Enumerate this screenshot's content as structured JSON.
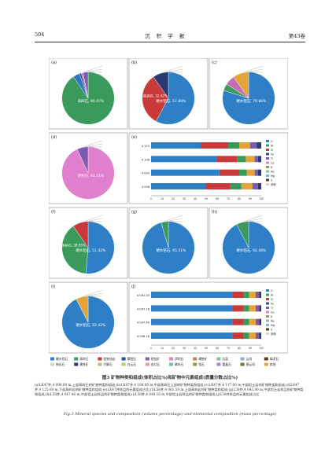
{
  "header": {
    "page": "504",
    "journal": "沉 积 学 报",
    "volume": "第43卷"
  },
  "panels": [
    {
      "id": "(a)",
      "slices": [
        {
          "label": "高岭石",
          "value": 90.47,
          "color": "#3a9a5c"
        },
        {
          "label": "钠长石",
          "value": 4.1,
          "color": "#3177c6"
        },
        {
          "label": "蒙脱石",
          "value": 1.2,
          "color": "#2a4e8c"
        },
        {
          "label": "伊利石",
          "value": 1.1,
          "color": "#c46fb4"
        },
        {
          "label": "其他",
          "value": 3.13,
          "color": "#7e5ab0"
        }
      ],
      "big_label": "高岭石, 90.47%"
    },
    {
      "id": "(b)",
      "slices": [
        {
          "label": "硬水铝石",
          "value": 57.86,
          "color": "#2f7fc6"
        },
        {
          "label": "铝铁质岩",
          "value": 32.42,
          "color": "#c83a3a"
        },
        {
          "label": "其他",
          "value": 9.72,
          "color": "#2b3a75"
        }
      ],
      "big_label": "硬水铝石, 57.86%",
      "mid_label": "铝铁质岩, 32.42%"
    },
    {
      "id": "(c)",
      "slices": [
        {
          "label": "硬水铝石",
          "value": 79.86,
          "color": "#2f7fc6"
        },
        {
          "label": "高岭石",
          "value": 4.2,
          "color": "#3a9a5c"
        },
        {
          "label": "锐钛矿",
          "value": 6.1,
          "color": "#c46fb4"
        },
        {
          "label": "其他",
          "value": 9.84,
          "color": "#e3a53a"
        }
      ],
      "big_label": "硬水铝石, 79.86%"
    },
    {
      "id": "(d)",
      "slices": [
        {
          "label": "伊利石",
          "value": 93.11,
          "color": "#e07fcd"
        },
        {
          "label": "其他",
          "value": 6.89,
          "color": "#7e5ab0"
        }
      ],
      "big_label": "伊利石, 93.11%"
    },
    {
      "id": "(f)",
      "slices": [
        {
          "label": "硬水铝石",
          "value": 51.42,
          "color": "#2f7fc6"
        },
        {
          "label": "高岭石",
          "value": 38.95,
          "color": "#3a9a5c"
        },
        {
          "label": "其他",
          "value": 9.63,
          "color": "#c83a3a"
        }
      ],
      "big_label": "硬水铝石, 51.42%",
      "mid_label": "高岭石, 38.95%"
    },
    {
      "id": "(g)",
      "slices": [
        {
          "label": "硬水铝石",
          "value": 95.51,
          "color": "#2f7fc6"
        },
        {
          "label": "其他",
          "value": 4.49,
          "color": "#3a9a5c"
        }
      ],
      "big_label": "硬水铝石, 95.51%"
    },
    {
      "id": "(h)",
      "slices": [
        {
          "label": "硬水铝石",
          "value": 92.46,
          "color": "#2f7fc6"
        },
        {
          "label": "其他",
          "value": 7.54,
          "color": "#3a9a5c"
        }
      ],
      "big_label": "硬水铝石, 92.46%"
    },
    {
      "id": "(i)",
      "slices": [
        {
          "label": "硬水铝石",
          "value": 92.42,
          "color": "#2f7fc6"
        },
        {
          "label": "其他",
          "value": 7.58,
          "color": "#e3a53a"
        }
      ],
      "big_label": "硬水铝石, 92.42%"
    }
  ],
  "bar_panels": [
    {
      "id": "(e)",
      "rows": [
        "4 125",
        "4 108",
        "4 090",
        "4 098"
      ],
      "segs": [
        [
          0.45,
          0.25,
          0.1,
          0.1,
          0.06,
          0.04
        ],
        [
          0.6,
          0.18,
          0.08,
          0.08,
          0.03,
          0.03
        ],
        [
          0.62,
          0.18,
          0.07,
          0.07,
          0.03,
          0.03
        ],
        [
          0.5,
          0.22,
          0.1,
          0.1,
          0.05,
          0.03
        ]
      ]
    },
    {
      "id": "(j)",
      "rows": [
        "4 061.59",
        "4 047.16",
        "4 047.46",
        "4 048.16"
      ],
      "segs": [
        [
          0.74,
          0.1,
          0.05,
          0.06,
          0.03,
          0.02
        ],
        [
          0.74,
          0.1,
          0.05,
          0.06,
          0.03,
          0.02
        ],
        [
          0.74,
          0.1,
          0.05,
          0.06,
          0.03,
          0.02
        ],
        [
          0.74,
          0.1,
          0.05,
          0.06,
          0.03,
          0.02
        ]
      ]
    }
  ],
  "bar_colors": [
    "#2f7fc6",
    "#c83a3a",
    "#3a9a5c",
    "#e3a53a",
    "#7e5ab0",
    "#2b3a75"
  ],
  "bar_axis": [
    "0",
    "10",
    "20",
    "30",
    "40",
    "50",
    "60",
    "70",
    "80",
    "90",
    "100"
  ],
  "bar_legend": [
    "O",
    "Al",
    "Si",
    "Fe",
    "Ti",
    "Ca",
    "K",
    "Na",
    "Mg",
    "S",
    "其他"
  ],
  "legend": [
    {
      "label": "硬水铝石",
      "color": "#2f7fc6"
    },
    {
      "label": "高岭石",
      "color": "#3a9a5c"
    },
    {
      "label": "铝铁质岩",
      "color": "#c83a3a"
    },
    {
      "label": "蒙脱石",
      "color": "#2a4e8c"
    },
    {
      "label": "锐钛矿",
      "color": "#7e5ab0"
    },
    {
      "label": "伊利石",
      "color": "#e07fcd"
    },
    {
      "label": "褐铁矿",
      "color": "#b38d5a"
    },
    {
      "label": "石英",
      "color": "#7fc6a0"
    },
    {
      "label": "云母",
      "color": "#8bb0d8"
    },
    {
      "label": "绿泥石",
      "color": "#5c3a1e"
    },
    {
      "label": "钠长石",
      "color": "#d4d4d4"
    },
    {
      "label": "黄铁矿",
      "color": "#2b3a75"
    },
    {
      "label": "方解石",
      "color": "#c6b880"
    },
    {
      "label": "白云石",
      "color": "#a8d46a"
    },
    {
      "label": "金红石",
      "color": "#e89e9e"
    },
    {
      "label": "磷灰石",
      "color": "#66c2c2"
    },
    {
      "label": "锆石",
      "color": "#9a9a3a"
    },
    {
      "label": "重晶石",
      "color": "#b37fd4"
    },
    {
      "label": "黑云母",
      "color": "#5a7f3a"
    },
    {
      "label": "其他",
      "color": "#e3a53a"
    }
  ],
  "caption_title": "图3 矿物种类和组成(体积占比%)和矿物中元素组成(质量分数占比%)",
  "caption_body": "(a)LK47井,4 098.00 m,上部高岭石的矿物种类和组成;(b)LK47井,4 108.00 m,中部高岭石上部的矿物种类和组成;(c)LK47井,4 117.00 m,中部铝土岩的矿物种类和组成;(d)LK47井,4 125.00 m,下部高岭岩的矿物种类和组成;(e)LK47井样品的元素组成占比;(f)L58井,4 061.59 m,上部高岭岩的矿物种类和组成;(g)L58井,4 045.90 m,中部铝土岩样品的矿物种类和组成;(h)L58井,4 047.46 m,中部铝土岩样品的矿物种类和组成;(i)L58井,4 048.16 m,中部铝土岩样品的矿物种类和组成;(j)L58井样品的元素组成占比",
  "caption_en": "Fig.3 Mineral species and composition (volume percentage) and elemental composition (mass percentage)"
}
